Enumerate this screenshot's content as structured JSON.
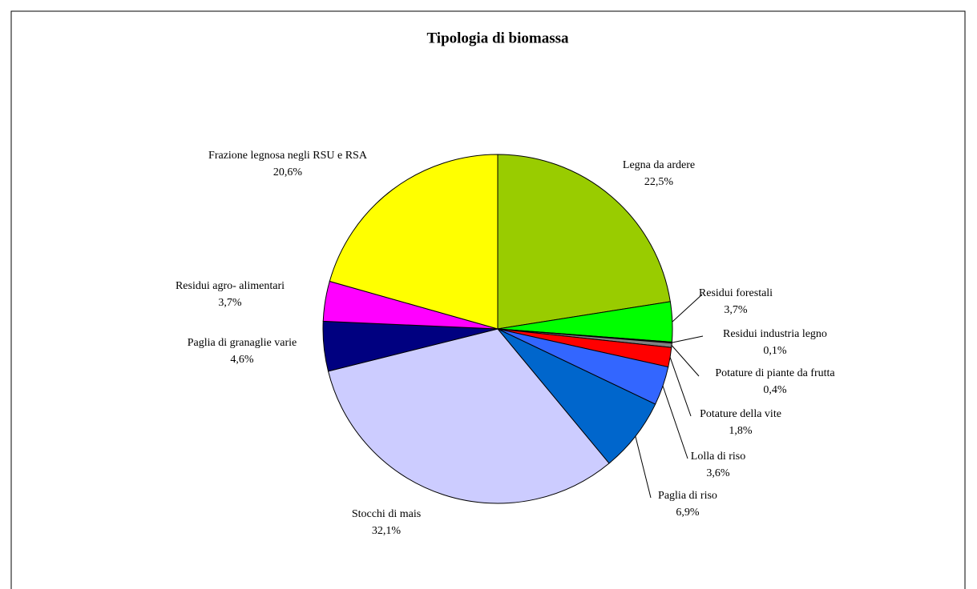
{
  "chart_data": {
    "type": "pie",
    "title": "Tipologia di biomassa",
    "categories": [
      "Legna da ardere",
      "Residui forestali",
      "Residui industria legno",
      "Potature di piante da frutta",
      "Potature della vite",
      "Lolla di riso",
      "Paglia di riso",
      "Stocchi di mais",
      "Paglia di granaglie varie",
      "Residui agro- alimentari",
      "Frazione legnosa negli RSU e RSA"
    ],
    "values": [
      22.5,
      3.7,
      0.1,
      0.4,
      1.8,
      3.6,
      6.9,
      32.1,
      4.6,
      3.7,
      20.6
    ],
    "value_labels": [
      "22,5%",
      "3,7%",
      "0,1%",
      "0,4%",
      "1,8%",
      "3,6%",
      "6,9%",
      "32,1%",
      "4,6%",
      "3,7%",
      "20,6%"
    ],
    "colors": [
      "#99cc00",
      "#00ff00",
      "#333333",
      "#808080",
      "#ff0000",
      "#3366ff",
      "#0066cc",
      "#ccccff",
      "#000080",
      "#ff00ff",
      "#ffff00"
    ]
  }
}
